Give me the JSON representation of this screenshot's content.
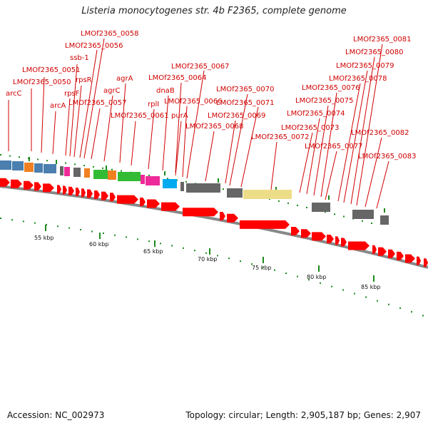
{
  "map": {
    "title": "Listeria monocytogenes str. 4b F2365, complete genome",
    "accession": "Accession: NC_002973",
    "topology": "Topology: circular; Length: 2,905,187 bp; Genes: 2,907",
    "tick_labels": [
      "55 kbp",
      "60 kbp",
      "65 kbp",
      "70 kbp",
      "75 kbp",
      "80 kbp",
      "85 kbp"
    ],
    "gene_labels": [
      "arcC",
      "LMOf2365_0050",
      "LMOf2365_0051",
      "arcA",
      "rpsF",
      "ssb-1",
      "rpsR",
      "LMOf2365_0056",
      "LMOf2365_0058",
      "LMOf2365_0057",
      "agrC",
      "agrA",
      "LMOf2365_0061",
      "rplI",
      "dnaB",
      "LMOf2365_0064",
      "purA",
      "LMOf2365_0066",
      "LMOf2365_0067",
      "LMOf2365_0068",
      "LMOf2365_0069",
      "LMOf2365_0070",
      "LMOf2365_0071",
      "LMOf2365_0072",
      "LMOf2365_0073",
      "LMOf2365_0074",
      "LMOf2365_0075",
      "LMOf2365_0076",
      "LMOf2365_0077",
      "LMOf2365_0078",
      "LMOf2365_0079",
      "LMOf2365_0080",
      "LMOf2365_0081",
      "LMOf2365_0082",
      "LMOf2365_0083"
    ],
    "colors": {
      "label": "#d00000",
      "forward_gene": "#ff0000",
      "backbone": "#888888",
      "tick": "#1a8a1a",
      "gray_feature": "#666666",
      "blue_feature": "#4a7fb0",
      "orange_feature": "#f08020",
      "green_feature": "#33bb33",
      "pink_feature": "#ee2a9a",
      "cyan_feature": "#00aaee",
      "khaki_feature": "#eedd88"
    }
  }
}
